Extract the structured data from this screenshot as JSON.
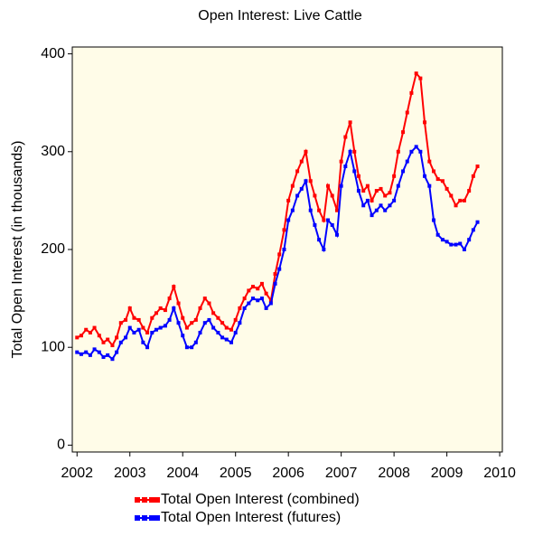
{
  "chart_data": {
    "type": "line",
    "title": "Open Interest: Live Cattle",
    "y_label": "Total Open Interest (in thousands)",
    "x": [
      2002.0,
      2002.08,
      2002.17,
      2002.25,
      2002.33,
      2002.42,
      2002.5,
      2002.58,
      2002.67,
      2002.75,
      2002.83,
      2002.92,
      2003.0,
      2003.08,
      2003.17,
      2003.25,
      2003.33,
      2003.42,
      2003.5,
      2003.58,
      2003.67,
      2003.75,
      2003.83,
      2003.92,
      2004.0,
      2004.08,
      2004.17,
      2004.25,
      2004.33,
      2004.42,
      2004.5,
      2004.58,
      2004.67,
      2004.75,
      2004.83,
      2004.92,
      2005.0,
      2005.08,
      2005.17,
      2005.25,
      2005.33,
      2005.42,
      2005.5,
      2005.58,
      2005.67,
      2005.75,
      2005.83,
      2005.92,
      2006.0,
      2006.08,
      2006.17,
      2006.25,
      2006.33,
      2006.42,
      2006.5,
      2006.58,
      2006.67,
      2006.75,
      2006.83,
      2006.92,
      2007.0,
      2007.08,
      2007.17,
      2007.25,
      2007.33,
      2007.42,
      2007.5,
      2007.58,
      2007.67,
      2007.75,
      2007.83,
      2007.92,
      2008.0,
      2008.08,
      2008.17,
      2008.25,
      2008.33,
      2008.42,
      2008.5,
      2008.58,
      2008.67,
      2008.75,
      2008.83,
      2008.92,
      2009.0,
      2009.08,
      2009.17,
      2009.25,
      2009.33,
      2009.42,
      2009.5,
      2009.58
    ],
    "series": [
      {
        "name": "Total Open Interest (combined)",
        "color": "#ff0000",
        "values": [
          110,
          112,
          118,
          115,
          120,
          112,
          105,
          108,
          102,
          110,
          125,
          128,
          140,
          130,
          128,
          120,
          115,
          130,
          135,
          140,
          138,
          150,
          162,
          145,
          130,
          120,
          125,
          128,
          140,
          150,
          145,
          135,
          130,
          125,
          120,
          118,
          128,
          140,
          150,
          158,
          162,
          160,
          165,
          155,
          148,
          175,
          195,
          220,
          250,
          265,
          280,
          290,
          300,
          270,
          255,
          240,
          230,
          265,
          255,
          240,
          290,
          315,
          330,
          300,
          275,
          260,
          265,
          250,
          260,
          262,
          255,
          258,
          275,
          300,
          320,
          340,
          360,
          380,
          375,
          330,
          290,
          280,
          272,
          270,
          262,
          255,
          245,
          250,
          250,
          260,
          275,
          285
        ]
      },
      {
        "name": "Total Open Interest (futures)",
        "color": "#0000ff",
        "values": [
          95,
          93,
          95,
          92,
          98,
          95,
          90,
          92,
          88,
          95,
          105,
          110,
          120,
          115,
          118,
          105,
          100,
          115,
          118,
          120,
          122,
          128,
          140,
          125,
          112,
          100,
          100,
          105,
          115,
          125,
          128,
          120,
          115,
          110,
          108,
          105,
          115,
          125,
          140,
          145,
          150,
          148,
          150,
          140,
          145,
          165,
          180,
          200,
          230,
          240,
          255,
          262,
          270,
          240,
          225,
          210,
          200,
          230,
          225,
          215,
          265,
          285,
          300,
          280,
          260,
          245,
          250,
          235,
          240,
          245,
          240,
          245,
          250,
          265,
          280,
          290,
          300,
          305,
          300,
          275,
          265,
          230,
          215,
          210,
          208,
          205,
          205,
          206,
          200,
          210,
          220,
          228
        ]
      }
    ],
    "xlim": [
      2001.91,
      2010.05
    ],
    "xticks": [
      2002,
      2003,
      2004,
      2005,
      2006,
      2007,
      2008,
      2009,
      2010
    ],
    "ylim": [
      -7,
      407
    ],
    "yticks": [
      0,
      100,
      200,
      300,
      400
    ],
    "background": "#fffce8"
  }
}
